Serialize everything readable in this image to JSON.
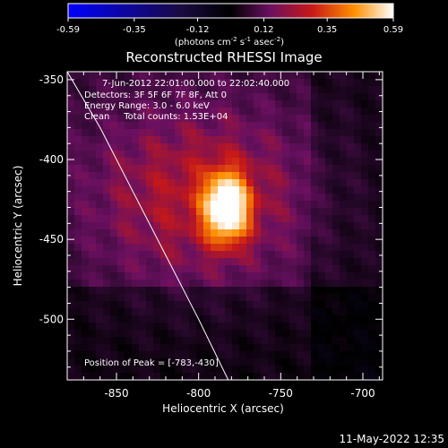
{
  "chart_data": {
    "type": "heatmap",
    "title": "Reconstructed RHESSI Image",
    "xlabel": "Heliocentric X (arcsec)",
    "ylabel": "Heliocentric Y (arcsec)",
    "xlim": [
      -880,
      -688
    ],
    "ylim": [
      -538,
      -345
    ],
    "x_ticks": [
      "-850",
      "-800",
      "-750",
      "-700"
    ],
    "x_tick_values": [
      -850,
      -800,
      -750,
      -700
    ],
    "y_ticks": [
      "-350",
      "-400",
      "-450",
      "-500"
    ],
    "y_tick_values": [
      -350,
      -400,
      -450,
      -500
    ],
    "colorbar": {
      "ticks": [
        "-0.59",
        "-0.35",
        "-0.12",
        "0.12",
        "0.35",
        "0.59"
      ],
      "tick_values": [
        -0.59,
        -0.35,
        -0.12,
        0.12,
        0.35,
        0.59
      ],
      "range": [
        -0.59,
        0.59
      ],
      "unit_prefix": "(photons cm",
      "unit_exp1": "-2",
      "unit_mid": " s",
      "unit_exp2": "-1",
      "unit_mid2": " asec",
      "unit_exp3": "-2",
      "unit_suffix": ")"
    },
    "annotations": [
      "7-Jun-2012 22:01:00.000 to 22:02:40.000",
      "Detectors: 3F 5F 6F 7F 8F, Att 0",
      "Energy Range: 3.0 - 6.0 keV",
      "Clean     Total counts: 1.53E+04",
      "Position of Peak = [-783,-430]"
    ],
    "peak": {
      "x": -783,
      "y": -430,
      "value": 0.59
    },
    "limb_curve": [
      [
        -880,
        -345
      ],
      [
        -860,
        -380
      ],
      [
        -840,
        -420
      ],
      [
        -820,
        -460
      ],
      [
        -800,
        -500
      ],
      [
        -782,
        -538
      ]
    ],
    "color_mapping": "colour scale: blue (negative) to black, purple, red, yellow, white (positive)",
    "date_stamp": "11-May-2022 12:35"
  }
}
